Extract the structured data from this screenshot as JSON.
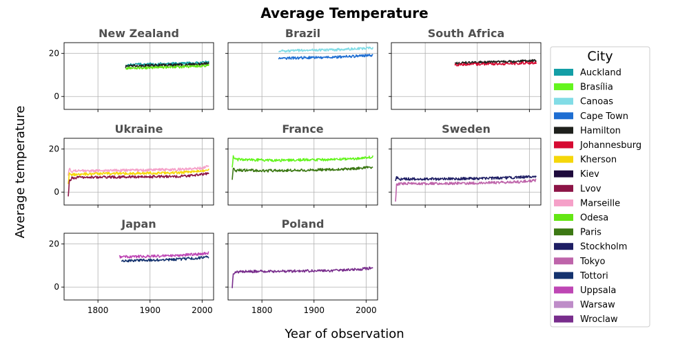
{
  "figure": {
    "title": "Average Temperature",
    "xlabel": "Year of observation",
    "ylabel": "Average temperature"
  },
  "legend": {
    "title": "City",
    "placement": "right",
    "entries": [
      {
        "name": "Auckland",
        "color": "#139ea6"
      },
      {
        "name": "Brasília",
        "color": "#64f51e"
      },
      {
        "name": "Canoas",
        "color": "#82dce6"
      },
      {
        "name": "Cape Town",
        "color": "#1e6ed2"
      },
      {
        "name": "Hamilton",
        "color": "#1e201c"
      },
      {
        "name": "Johannesburg",
        "color": "#d60a32"
      },
      {
        "name": "Kherson",
        "color": "#f5d70a"
      },
      {
        "name": "Kiev",
        "color": "#1e0a3c"
      },
      {
        "name": "Lvov",
        "color": "#8c1446"
      },
      {
        "name": "Marseille",
        "color": "#f5a0c8"
      },
      {
        "name": "Odesa",
        "color": "#64e614"
      },
      {
        "name": "Paris",
        "color": "#3c7814"
      },
      {
        "name": "Stockholm",
        "color": "#1e1e64"
      },
      {
        "name": "Tokyo",
        "color": "#be64aa"
      },
      {
        "name": "Tottori",
        "color": "#14326e"
      },
      {
        "name": "Uppsala",
        "color": "#be46b4"
      },
      {
        "name": "Warsaw",
        "color": "#be8cc8"
      },
      {
        "name": "Wroclaw",
        "color": "#782d8c"
      }
    ]
  },
  "chart_data": [
    {
      "type": "line",
      "title": "New Zealand",
      "xlim": [
        1735,
        2022
      ],
      "ylim": [
        -6,
        25
      ],
      "xticks": [
        1800,
        1900,
        2000
      ],
      "yticks": [
        0,
        20
      ],
      "grid": true,
      "series": [
        {
          "name": "Auckland",
          "color": "#139ea6",
          "x": [
            1853,
            1860,
            1880,
            1900,
            1920,
            1940,
            1960,
            1980,
            2000,
            2013
          ],
          "y": [
            14.3,
            14.8,
            14.9,
            15.0,
            15.1,
            15.2,
            15.4,
            15.5,
            15.7,
            16.0
          ]
        },
        {
          "name": "Hamilton",
          "color": "#1e201c",
          "x": [
            1853,
            1860,
            1880,
            1900,
            1920,
            1940,
            1960,
            1980,
            2000,
            2013
          ],
          "y": [
            13.7,
            14.2,
            14.3,
            14.4,
            14.5,
            14.6,
            14.7,
            14.9,
            15.1,
            15.4
          ]
        },
        {
          "name": "Odesa",
          "color": "#64e614",
          "x": [
            1853,
            1860,
            1880,
            1900,
            1920,
            1940,
            1960,
            1980,
            2000,
            2013
          ],
          "y": [
            12.8,
            13.2,
            13.3,
            13.4,
            13.6,
            13.7,
            13.8,
            14.0,
            14.2,
            14.6
          ]
        }
      ]
    },
    {
      "type": "line",
      "title": "Brazil",
      "xlim": [
        1735,
        2022
      ],
      "ylim": [
        -6,
        25
      ],
      "xticks": [
        1800,
        1900,
        2000
      ],
      "yticks": [
        0,
        20
      ],
      "grid": true,
      "series": [
        {
          "name": "Canoas",
          "color": "#82dce6",
          "x": [
            1832,
            1850,
            1880,
            1900,
            1920,
            1940,
            1960,
            1980,
            2000,
            2013
          ],
          "y": [
            21.0,
            21.2,
            21.4,
            21.5,
            21.6,
            21.7,
            21.9,
            22.1,
            22.4,
            22.6
          ]
        },
        {
          "name": "Cape Town",
          "color": "#1e6ed2",
          "x": [
            1832,
            1850,
            1880,
            1900,
            1920,
            1940,
            1960,
            1980,
            2000,
            2013
          ],
          "y": [
            17.5,
            17.8,
            18.0,
            18.1,
            18.2,
            18.3,
            18.5,
            18.7,
            19.0,
            19.2
          ]
        }
      ]
    },
    {
      "type": "line",
      "title": "South Africa",
      "xlim": [
        1735,
        2022
      ],
      "ylim": [
        -6,
        25
      ],
      "xticks": [
        1800,
        1900,
        2000
      ],
      "yticks": [
        0,
        20
      ],
      "grid": true,
      "series": [
        {
          "name": "Hamilton",
          "color": "#1e201c",
          "x": [
            1857,
            1870,
            1890,
            1910,
            1930,
            1950,
            1970,
            1990,
            2013
          ],
          "y": [
            15.4,
            15.6,
            15.7,
            15.9,
            16.0,
            16.1,
            16.2,
            16.4,
            16.6
          ]
        },
        {
          "name": "Johannesburg",
          "color": "#d60a32",
          "x": [
            1857,
            1870,
            1890,
            1910,
            1930,
            1950,
            1970,
            1990,
            2013
          ],
          "y": [
            14.7,
            14.8,
            14.9,
            15.0,
            15.1,
            15.2,
            15.3,
            15.5,
            15.7
          ]
        }
      ]
    },
    {
      "type": "line",
      "title": "Ukraine",
      "xlim": [
        1735,
        2022
      ],
      "ylim": [
        -6,
        25
      ],
      "xticks": [
        1800,
        1900,
        2000
      ],
      "yticks": [
        0,
        20
      ],
      "grid": true,
      "series": [
        {
          "name": "Marseille",
          "color": "#f5a0c8",
          "x": [
            1743,
            1745,
            1750,
            1760,
            1780,
            1800,
            1830,
            1860,
            1890,
            1920,
            1950,
            1980,
            2000,
            2013
          ],
          "y": [
            8.0,
            11.0,
            9.5,
            10.0,
            9.8,
            9.9,
            10.0,
            10.1,
            10.2,
            10.4,
            10.5,
            10.8,
            11.3,
            12.0
          ]
        },
        {
          "name": "Kherson",
          "color": "#f5d70a",
          "x": [
            1743,
            1745,
            1750,
            1760,
            1780,
            1800,
            1830,
            1860,
            1890,
            1920,
            1950,
            1980,
            2000,
            2013
          ],
          "y": [
            4.0,
            8.5,
            8.0,
            8.3,
            8.4,
            8.5,
            8.6,
            8.7,
            8.8,
            8.9,
            9.0,
            9.3,
            9.8,
            10.5
          ]
        },
        {
          "name": "Lvov",
          "color": "#8c1446",
          "x": [
            1743,
            1745,
            1750,
            1760,
            1780,
            1800,
            1830,
            1860,
            1890,
            1920,
            1950,
            1980,
            2000,
            2013
          ],
          "y": [
            -2.0,
            5.0,
            6.5,
            6.8,
            6.9,
            7.0,
            7.0,
            7.1,
            7.1,
            7.2,
            7.3,
            7.6,
            8.2,
            8.8
          ]
        }
      ]
    },
    {
      "type": "line",
      "title": "France",
      "xlim": [
        1735,
        2022
      ],
      "ylim": [
        -6,
        25
      ],
      "xticks": [
        1800,
        1900,
        2000
      ],
      "yticks": [
        0,
        20
      ],
      "grid": true,
      "series": [
        {
          "name": "Brasília",
          "color": "#64f51e",
          "x": [
            1743,
            1745,
            1750,
            1760,
            1780,
            1800,
            1830,
            1860,
            1890,
            1920,
            1950,
            1980,
            2000,
            2013
          ],
          "y": [
            11.0,
            16.5,
            15.0,
            15.2,
            15.0,
            14.9,
            14.8,
            14.9,
            15.0,
            15.1,
            15.3,
            15.6,
            16.1,
            16.4
          ]
        },
        {
          "name": "Paris",
          "color": "#3c7814",
          "x": [
            1743,
            1745,
            1750,
            1760,
            1780,
            1800,
            1830,
            1860,
            1890,
            1920,
            1950,
            1980,
            2000,
            2013
          ],
          "y": [
            5.5,
            11.0,
            10.0,
            10.2,
            10.1,
            10.0,
            10.0,
            10.1,
            10.2,
            10.4,
            10.6,
            10.9,
            11.4,
            11.7
          ]
        }
      ]
    },
    {
      "type": "line",
      "title": "Sweden",
      "xlim": [
        1735,
        2022
      ],
      "ylim": [
        -6,
        25
      ],
      "xticks": [
        1800,
        1900,
        2000
      ],
      "yticks": [
        0,
        20
      ],
      "grid": true,
      "series": [
        {
          "name": "Stockholm",
          "color": "#1e1e64",
          "x": [
            1743,
            1745,
            1750,
            1760,
            1780,
            1800,
            1830,
            1860,
            1890,
            1920,
            1950,
            1980,
            2000,
            2013
          ],
          "y": [
            5.0,
            7.0,
            6.0,
            6.1,
            6.1,
            6.1,
            6.1,
            6.2,
            6.3,
            6.4,
            6.6,
            6.9,
            7.2,
            7.5
          ]
        },
        {
          "name": "Tokyo",
          "color": "#be64aa",
          "x": [
            1743,
            1745,
            1750,
            1760,
            1780,
            1800,
            1830,
            1860,
            1890,
            1920,
            1950,
            1980,
            2000,
            2013
          ],
          "y": [
            -4.0,
            3.5,
            3.8,
            4.0,
            4.0,
            4.0,
            4.0,
            4.1,
            4.2,
            4.3,
            4.5,
            4.8,
            5.2,
            5.5
          ]
        }
      ]
    },
    {
      "type": "line",
      "title": "Japan",
      "xlim": [
        1735,
        2022
      ],
      "ylim": [
        -6,
        25
      ],
      "xticks": [
        1800,
        1900,
        2000
      ],
      "yticks": [
        0,
        20
      ],
      "grid": true,
      "series": [
        {
          "name": "Uppsala",
          "color": "#be46b4",
          "x": [
            1841,
            1860,
            1880,
            1900,
            1920,
            1940,
            1960,
            1980,
            2000,
            2013
          ],
          "y": [
            14.0,
            14.1,
            14.2,
            14.3,
            14.4,
            14.6,
            14.8,
            15.1,
            15.5,
            15.9
          ]
        },
        {
          "name": "Tottori",
          "color": "#14326e",
          "x": [
            1845,
            1860,
            1880,
            1900,
            1920,
            1940,
            1960,
            1980,
            2000,
            2013
          ],
          "y": [
            12.2,
            12.3,
            12.4,
            12.5,
            12.6,
            12.8,
            13.0,
            13.3,
            13.7,
            14.0
          ]
        }
      ]
    },
    {
      "type": "line",
      "title": "Poland",
      "xlim": [
        1735,
        2022
      ],
      "ylim": [
        -6,
        25
      ],
      "xticks": [
        1800,
        1900,
        2000
      ],
      "yticks": [
        0,
        20
      ],
      "grid": true,
      "series": [
        {
          "name": "Wroclaw",
          "color": "#782d8c",
          "x": [
            1743,
            1745,
            1750,
            1760,
            1780,
            1800,
            1830,
            1860,
            1890,
            1920,
            1950,
            1980,
            2000,
            2013
          ],
          "y": [
            0.0,
            6.5,
            7.0,
            7.2,
            7.2,
            7.3,
            7.3,
            7.4,
            7.5,
            7.6,
            7.8,
            8.1,
            8.6,
            8.9
          ]
        }
      ]
    }
  ]
}
